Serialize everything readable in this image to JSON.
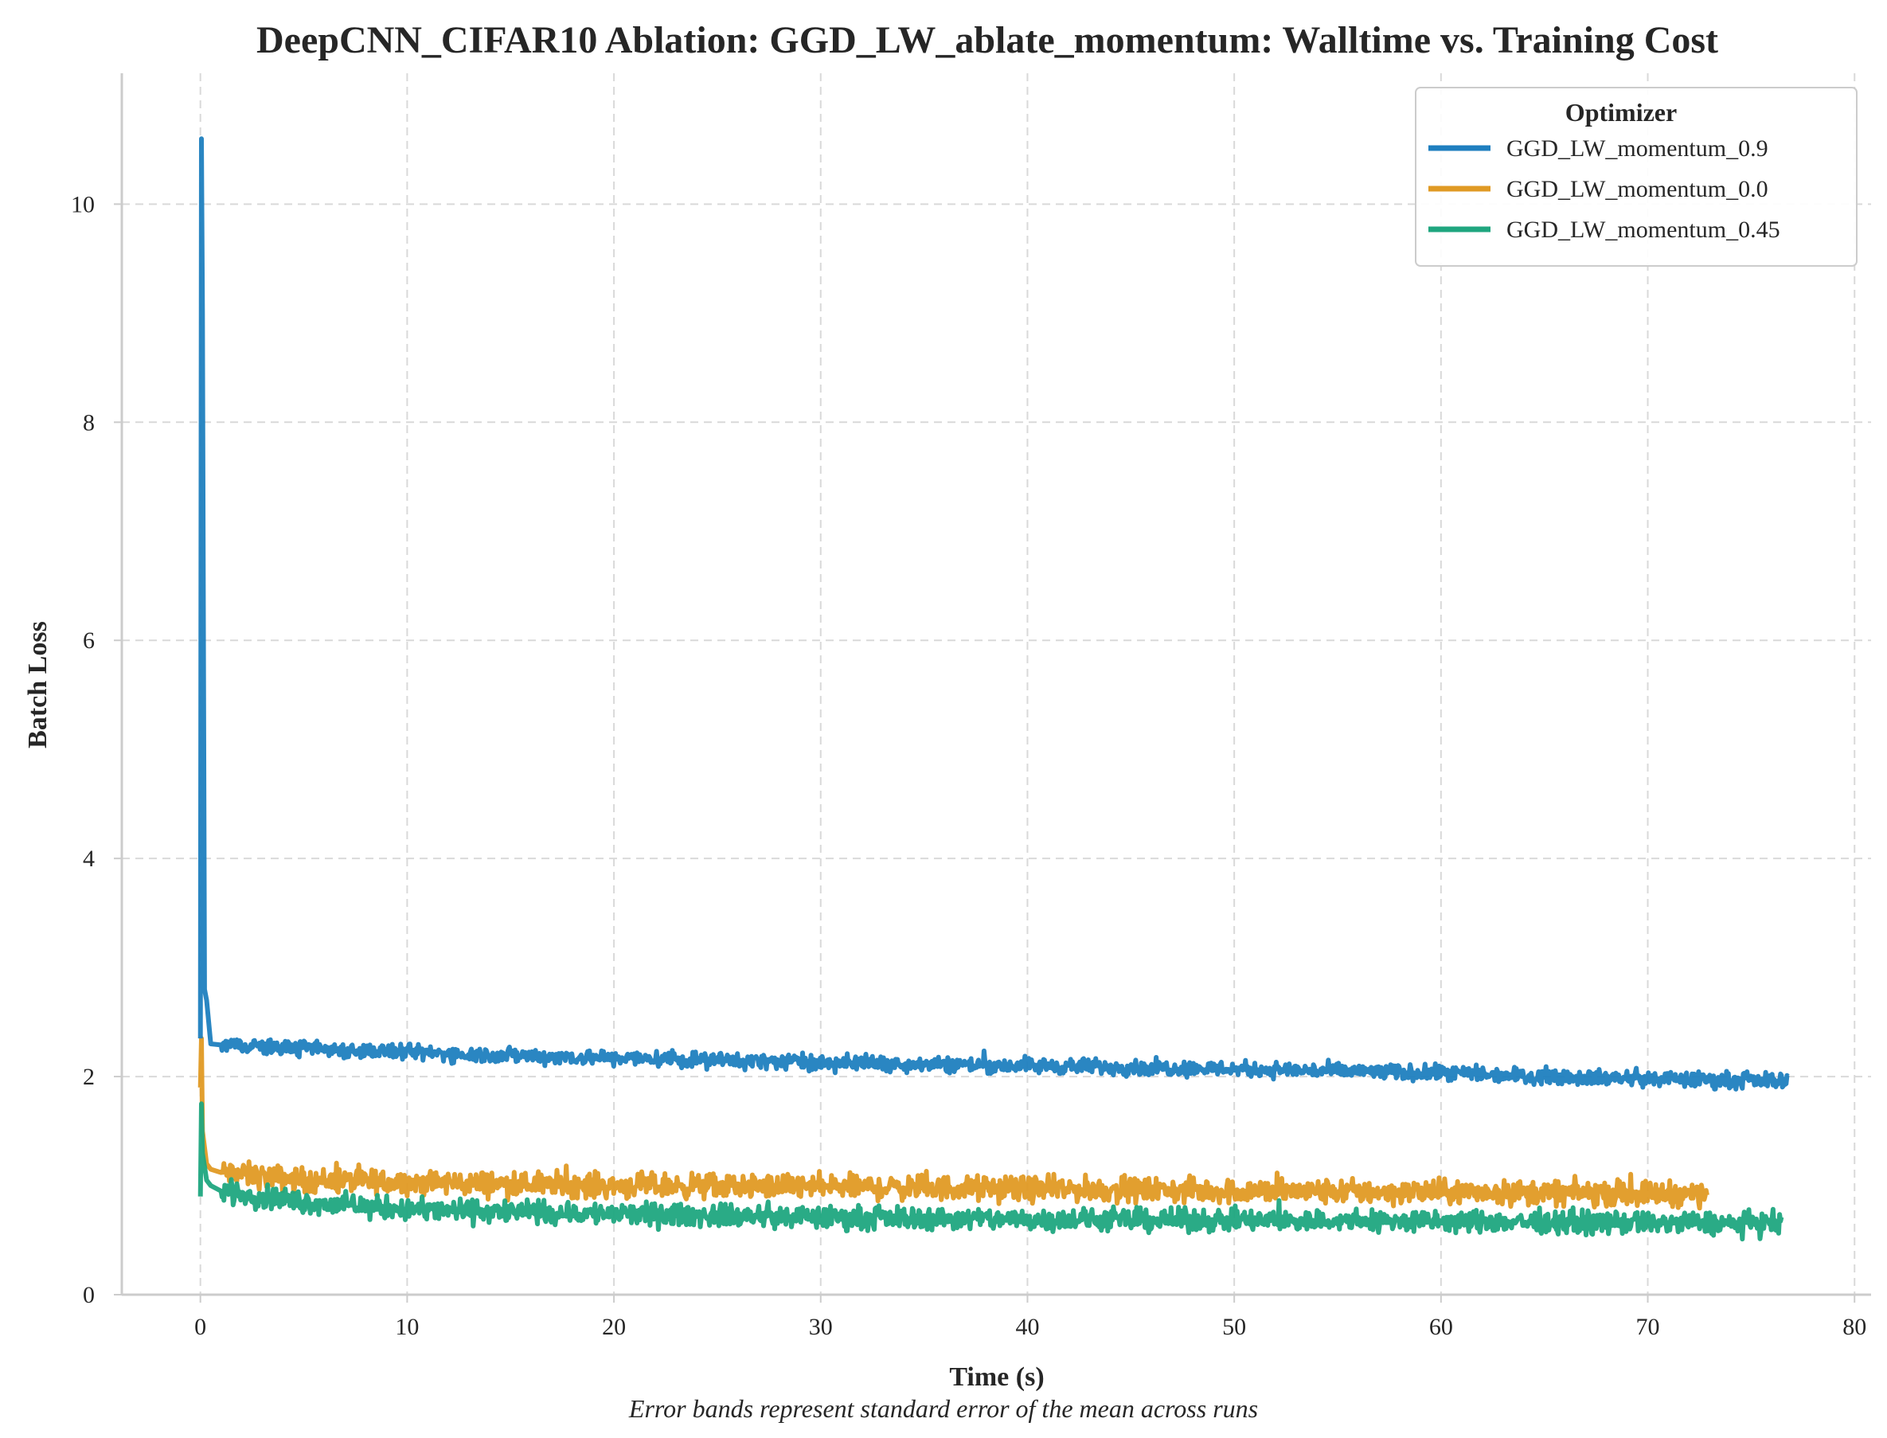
{
  "chart_data": {
    "type": "line",
    "title": "DeepCNN_CIFAR10 Ablation: GGD_LW_ablate_momentum: Walltime vs. Training Cost",
    "xlabel": "Time (s)",
    "ylabel": "Batch Loss",
    "caption": "Error bands represent standard error of the mean across runs",
    "xlim": [
      -3.8,
      80.8
    ],
    "ylim": [
      0,
      11.2
    ],
    "x_ticks": [
      0,
      10,
      20,
      30,
      40,
      50,
      60,
      70,
      80
    ],
    "y_ticks": [
      0,
      2,
      4,
      6,
      8,
      10
    ],
    "grid": true,
    "legend": {
      "title": "Optimizer",
      "placement": "top-right"
    },
    "series": [
      {
        "name": "GGD_LW_momentum_0.9",
        "color": "#1f7fbf",
        "noise": 0.035,
        "x": [
          0,
          0.05,
          0.1,
          0.2,
          0.3,
          0.5,
          1,
          5,
          10,
          20,
          30,
          40,
          50,
          60,
          70,
          76.8
        ],
        "y": [
          2.35,
          10.6,
          9.0,
          2.8,
          2.7,
          2.3,
          2.29,
          2.26,
          2.22,
          2.17,
          2.13,
          2.1,
          2.07,
          2.03,
          1.98,
          1.96
        ]
      },
      {
        "name": "GGD_LW_momentum_0.0",
        "color": "#e09a24",
        "noise": 0.055,
        "x": [
          0,
          0.05,
          0.1,
          0.3,
          0.5,
          1,
          5,
          10,
          20,
          30,
          40,
          50,
          60,
          70,
          72.9
        ],
        "y": [
          1.9,
          2.35,
          1.5,
          1.2,
          1.15,
          1.12,
          1.05,
          1.03,
          1.0,
          0.99,
          0.97,
          0.95,
          0.94,
          0.93,
          0.92
        ]
      },
      {
        "name": "GGD_LW_momentum_0.45",
        "color": "#1fa67f",
        "noise": 0.05,
        "x": [
          0,
          0.05,
          0.1,
          0.3,
          0.5,
          1,
          5,
          10,
          20,
          30,
          40,
          50,
          60,
          70,
          76.5
        ],
        "y": [
          0.9,
          1.75,
          1.3,
          1.05,
          1.0,
          0.95,
          0.85,
          0.78,
          0.74,
          0.71,
          0.69,
          0.68,
          0.67,
          0.66,
          0.65
        ]
      }
    ]
  }
}
